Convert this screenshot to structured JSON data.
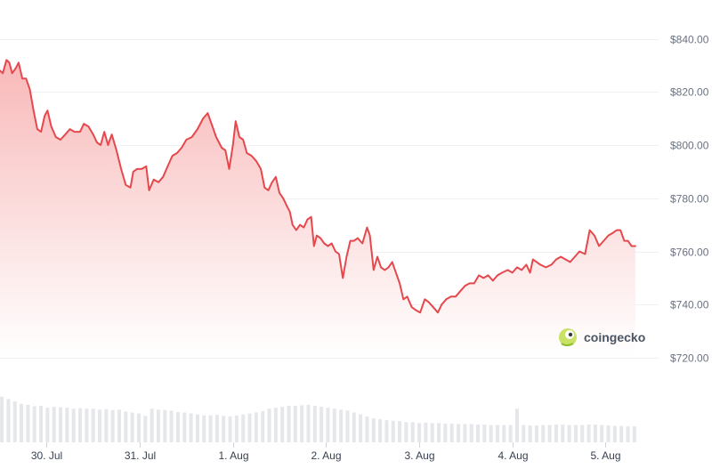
{
  "chart_data": {
    "type": "area",
    "title": "",
    "xlabel": "",
    "ylabel": "",
    "ylim": [
      720,
      840
    ],
    "y_ticks": [
      "$720.00",
      "$740.00",
      "$760.00",
      "$780.00",
      "$800.00",
      "$820.00",
      "$840.00"
    ],
    "y_tick_values": [
      720,
      740,
      760,
      780,
      800,
      820,
      840
    ],
    "x_ticks": [
      "30. Jul",
      "31. Jul",
      "1. Aug",
      "2. Aug",
      "3. Aug",
      "4. Aug",
      "5. Aug"
    ],
    "x_tick_values": [
      0.5,
      1.5,
      2.5,
      3.5,
      4.5,
      5.5,
      6.5
    ],
    "x_range": [
      0,
      7.05
    ],
    "grid": true,
    "legend": "none",
    "colors": {
      "line": "#e5484d",
      "fill_top": "#f8b4b4",
      "fill_bottom": "#ffffff",
      "volume": "#e5e7eb",
      "grid": "#eef0f2"
    },
    "series": [
      {
        "values": [
          [
            0.0,
            828
          ],
          [
            0.03,
            827
          ],
          [
            0.07,
            832
          ],
          [
            0.1,
            831
          ],
          [
            0.13,
            827
          ],
          [
            0.17,
            829
          ],
          [
            0.2,
            831
          ],
          [
            0.24,
            825
          ],
          [
            0.28,
            825
          ],
          [
            0.32,
            821
          ],
          [
            0.36,
            813
          ],
          [
            0.4,
            806
          ],
          [
            0.44,
            805
          ],
          [
            0.48,
            811
          ],
          [
            0.51,
            813
          ],
          [
            0.55,
            807
          ],
          [
            0.6,
            803
          ],
          [
            0.65,
            802
          ],
          [
            0.7,
            804
          ],
          [
            0.75,
            806
          ],
          [
            0.8,
            805
          ],
          [
            0.86,
            805
          ],
          [
            0.9,
            808
          ],
          [
            0.95,
            807
          ],
          [
            1.0,
            804
          ],
          [
            1.04,
            801
          ],
          [
            1.08,
            800
          ],
          [
            1.12,
            805
          ],
          [
            1.16,
            800
          ],
          [
            1.2,
            804
          ],
          [
            1.25,
            798
          ],
          [
            1.3,
            791
          ],
          [
            1.35,
            785
          ],
          [
            1.4,
            784
          ],
          [
            1.43,
            790
          ],
          [
            1.47,
            791
          ],
          [
            1.52,
            791
          ],
          [
            1.57,
            792
          ],
          [
            1.6,
            783
          ],
          [
            1.65,
            787
          ],
          [
            1.7,
            786
          ],
          [
            1.75,
            788
          ],
          [
            1.8,
            792
          ],
          [
            1.85,
            796
          ],
          [
            1.9,
            797
          ],
          [
            1.95,
            799
          ],
          [
            2.0,
            802
          ],
          [
            2.06,
            803
          ],
          [
            2.12,
            806
          ],
          [
            2.18,
            810
          ],
          [
            2.23,
            812
          ],
          [
            2.28,
            807
          ],
          [
            2.32,
            803
          ],
          [
            2.38,
            799
          ],
          [
            2.42,
            798
          ],
          [
            2.46,
            791
          ],
          [
            2.5,
            800
          ],
          [
            2.53,
            809
          ],
          [
            2.57,
            803
          ],
          [
            2.61,
            802
          ],
          [
            2.65,
            797
          ],
          [
            2.7,
            796
          ],
          [
            2.75,
            794
          ],
          [
            2.8,
            791
          ],
          [
            2.84,
            784
          ],
          [
            2.88,
            783
          ],
          [
            2.92,
            786
          ],
          [
            2.96,
            788
          ],
          [
            3.0,
            782
          ],
          [
            3.04,
            780
          ],
          [
            3.08,
            777
          ],
          [
            3.11,
            775
          ],
          [
            3.14,
            770
          ],
          [
            3.18,
            768
          ],
          [
            3.22,
            770
          ],
          [
            3.26,
            769
          ],
          [
            3.3,
            772
          ],
          [
            3.34,
            773
          ],
          [
            3.37,
            762
          ],
          [
            3.4,
            766
          ],
          [
            3.44,
            765
          ],
          [
            3.48,
            763
          ],
          [
            3.52,
            762
          ],
          [
            3.56,
            763
          ],
          [
            3.6,
            760
          ],
          [
            3.64,
            759
          ],
          [
            3.68,
            750
          ],
          [
            3.72,
            758
          ],
          [
            3.76,
            764
          ],
          [
            3.8,
            764
          ],
          [
            3.84,
            765
          ],
          [
            3.89,
            763
          ],
          [
            3.94,
            769
          ],
          [
            3.97,
            766
          ],
          [
            4.01,
            753
          ],
          [
            4.05,
            758
          ],
          [
            4.09,
            754
          ],
          [
            4.13,
            753
          ],
          [
            4.17,
            754
          ],
          [
            4.21,
            756
          ],
          [
            4.25,
            752
          ],
          [
            4.29,
            748
          ],
          [
            4.33,
            742
          ],
          [
            4.37,
            743
          ],
          [
            4.42,
            739
          ],
          [
            4.46,
            738
          ],
          [
            4.51,
            737
          ],
          [
            4.56,
            742
          ],
          [
            4.6,
            741
          ],
          [
            4.65,
            739
          ],
          [
            4.7,
            737
          ],
          [
            4.74,
            740
          ],
          [
            4.79,
            742
          ],
          [
            4.84,
            743
          ],
          [
            4.89,
            743
          ],
          [
            4.94,
            745
          ],
          [
            4.99,
            747
          ],
          [
            5.04,
            748
          ],
          [
            5.09,
            748
          ],
          [
            5.14,
            751
          ],
          [
            5.19,
            750
          ],
          [
            5.24,
            751
          ],
          [
            5.29,
            749
          ],
          [
            5.34,
            751
          ],
          [
            5.39,
            752
          ],
          [
            5.45,
            753
          ],
          [
            5.5,
            752
          ],
          [
            5.55,
            754
          ],
          [
            5.6,
            753
          ],
          [
            5.65,
            755
          ],
          [
            5.69,
            752
          ],
          [
            5.72,
            757
          ],
          [
            5.76,
            756
          ],
          [
            5.8,
            755
          ],
          [
            5.86,
            754
          ],
          [
            5.92,
            755
          ],
          [
            5.97,
            757
          ],
          [
            6.02,
            758
          ],
          [
            6.07,
            757
          ],
          [
            6.12,
            756
          ],
          [
            6.17,
            758
          ],
          [
            6.22,
            760
          ],
          [
            6.28,
            759
          ],
          [
            6.33,
            768
          ],
          [
            6.38,
            766
          ],
          [
            6.43,
            762
          ],
          [
            6.48,
            764
          ],
          [
            6.53,
            766
          ],
          [
            6.58,
            767
          ],
          [
            6.62,
            768
          ],
          [
            6.66,
            768
          ],
          [
            6.7,
            764
          ],
          [
            6.74,
            764
          ],
          [
            6.78,
            762
          ],
          [
            6.82,
            762
          ]
        ]
      }
    ],
    "volume": [
      [
        0.02,
        0.95
      ],
      [
        0.09,
        0.9
      ],
      [
        0.16,
        0.85
      ],
      [
        0.23,
        0.8
      ],
      [
        0.3,
        0.78
      ],
      [
        0.37,
        0.75
      ],
      [
        0.44,
        0.76
      ],
      [
        0.51,
        0.72
      ],
      [
        0.58,
        0.74
      ],
      [
        0.65,
        0.73
      ],
      [
        0.72,
        0.72
      ],
      [
        0.79,
        0.7
      ],
      [
        0.86,
        0.71
      ],
      [
        0.93,
        0.7
      ],
      [
        1.0,
        0.7
      ],
      [
        1.07,
        0.68
      ],
      [
        1.14,
        0.69
      ],
      [
        1.21,
        0.67
      ],
      [
        1.28,
        0.68
      ],
      [
        1.35,
        0.64
      ],
      [
        1.42,
        0.62
      ],
      [
        1.49,
        0.6
      ],
      [
        1.56,
        0.55
      ],
      [
        1.63,
        0.7
      ],
      [
        1.7,
        0.68
      ],
      [
        1.77,
        0.67
      ],
      [
        1.84,
        0.66
      ],
      [
        1.91,
        0.63
      ],
      [
        1.98,
        0.62
      ],
      [
        2.05,
        0.6
      ],
      [
        2.12,
        0.58
      ],
      [
        2.19,
        0.56
      ],
      [
        2.26,
        0.56
      ],
      [
        2.33,
        0.57
      ],
      [
        2.4,
        0.55
      ],
      [
        2.47,
        0.54
      ],
      [
        2.54,
        0.56
      ],
      [
        2.61,
        0.58
      ],
      [
        2.68,
        0.6
      ],
      [
        2.75,
        0.62
      ],
      [
        2.82,
        0.65
      ],
      [
        2.89,
        0.7
      ],
      [
        2.96,
        0.72
      ],
      [
        3.03,
        0.74
      ],
      [
        3.1,
        0.76
      ],
      [
        3.17,
        0.76
      ],
      [
        3.24,
        0.77
      ],
      [
        3.31,
        0.78
      ],
      [
        3.38,
        0.76
      ],
      [
        3.45,
        0.74
      ],
      [
        3.52,
        0.72
      ],
      [
        3.59,
        0.7
      ],
      [
        3.66,
        0.68
      ],
      [
        3.73,
        0.66
      ],
      [
        3.8,
        0.62
      ],
      [
        3.87,
        0.58
      ],
      [
        3.94,
        0.54
      ],
      [
        4.01,
        0.5
      ],
      [
        4.08,
        0.48
      ],
      [
        4.15,
        0.46
      ],
      [
        4.22,
        0.45
      ],
      [
        4.29,
        0.44
      ],
      [
        4.36,
        0.42
      ],
      [
        4.43,
        0.42
      ],
      [
        4.5,
        0.4
      ],
      [
        4.57,
        0.41
      ],
      [
        4.64,
        0.4
      ],
      [
        4.71,
        0.4
      ],
      [
        4.78,
        0.39
      ],
      [
        4.85,
        0.39
      ],
      [
        4.92,
        0.38
      ],
      [
        4.99,
        0.38
      ],
      [
        5.06,
        0.38
      ],
      [
        5.13,
        0.37
      ],
      [
        5.2,
        0.37
      ],
      [
        5.27,
        0.36
      ],
      [
        5.34,
        0.36
      ],
      [
        5.41,
        0.36
      ],
      [
        5.48,
        0.36
      ],
      [
        5.55,
        0.7
      ],
      [
        5.62,
        0.36
      ],
      [
        5.69,
        0.35
      ],
      [
        5.76,
        0.35
      ],
      [
        5.83,
        0.36
      ],
      [
        5.9,
        0.36
      ],
      [
        5.97,
        0.37
      ],
      [
        6.04,
        0.37
      ],
      [
        6.11,
        0.36
      ],
      [
        6.18,
        0.36
      ],
      [
        6.25,
        0.36
      ],
      [
        6.32,
        0.37
      ],
      [
        6.39,
        0.37
      ],
      [
        6.46,
        0.36
      ],
      [
        6.53,
        0.35
      ],
      [
        6.6,
        0.34
      ],
      [
        6.67,
        0.34
      ],
      [
        6.74,
        0.33
      ],
      [
        6.81,
        0.33
      ]
    ]
  },
  "watermark": {
    "text": "coingecko",
    "icon": "gecko-icon"
  }
}
